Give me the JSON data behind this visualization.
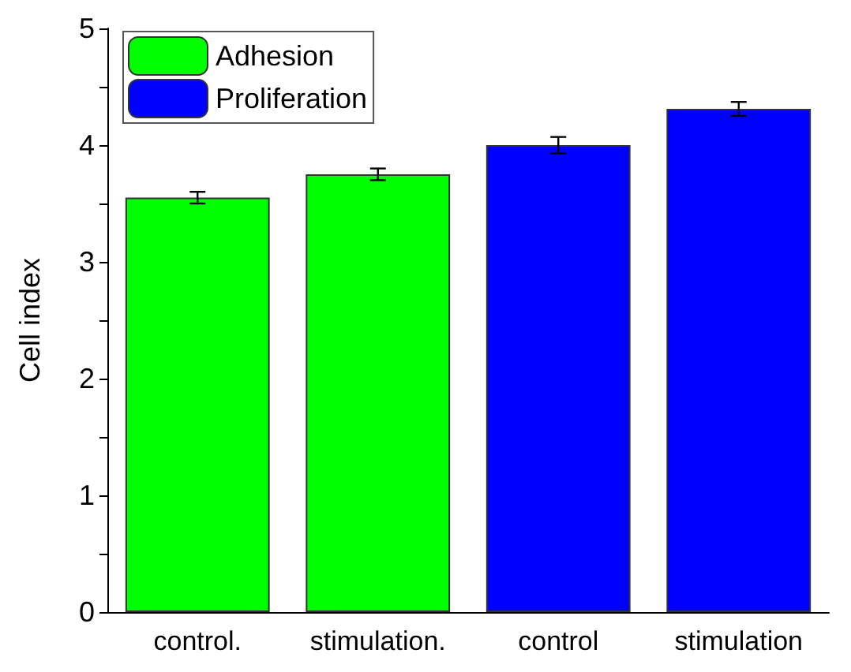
{
  "chart_data": {
    "type": "bar",
    "ylabel": "Cell index",
    "categories": [
      "control.",
      "stimulation.",
      "control",
      "stimulation"
    ],
    "series": [
      {
        "name": "Adhesion",
        "color": "#00ff00",
        "values": [
          3.55,
          3.75,
          null,
          null
        ],
        "errors": [
          0.05,
          0.05,
          null,
          null
        ]
      },
      {
        "name": "Proliferation",
        "color": "#0000ff",
        "values": [
          null,
          null,
          4.0,
          4.31
        ],
        "errors": [
          null,
          null,
          0.07,
          0.06
        ]
      }
    ],
    "ylim": [
      0,
      5
    ],
    "yticks": [
      0,
      {
        "value": 0.5,
        "label": null
      },
      1,
      {
        "value": 1.5,
        "label": null
      },
      2,
      {
        "value": 2.5,
        "label": null
      },
      3,
      {
        "value": 3.5,
        "label": null
      },
      4,
      {
        "value": 4.5,
        "label": null
      },
      5
    ],
    "grid": false,
    "legend": "top left"
  }
}
